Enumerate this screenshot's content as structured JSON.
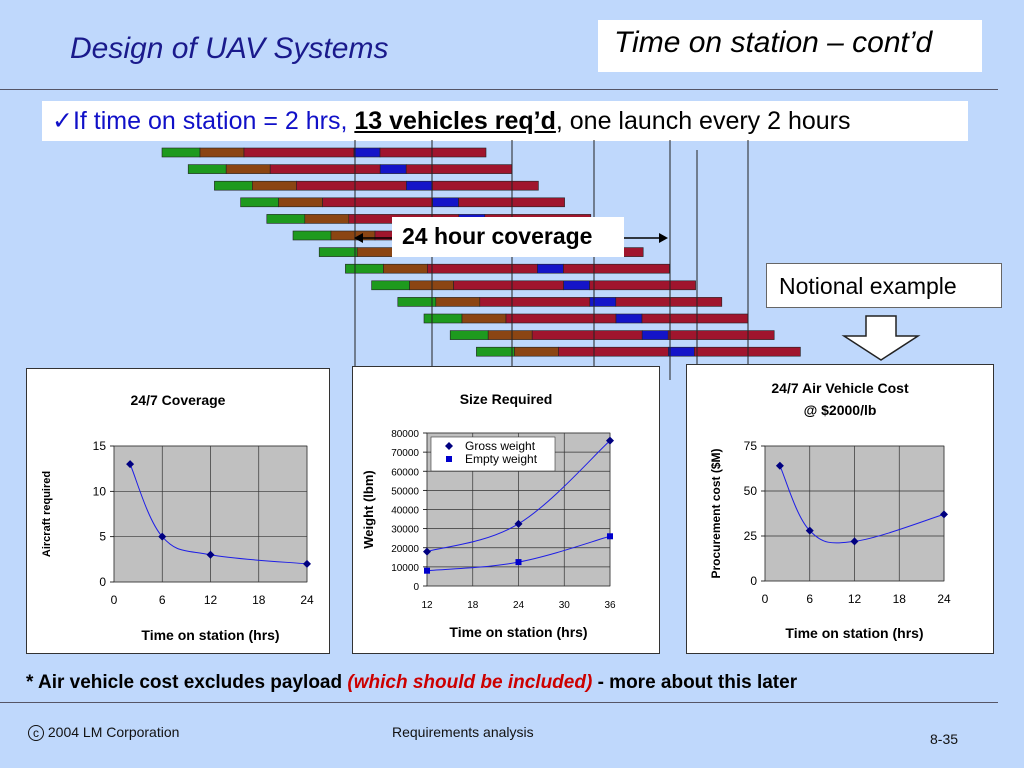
{
  "header": {
    "title": "Design of UAV Systems",
    "section_title": "Time on station – cont’d"
  },
  "bullet": {
    "check_icon": "check-icon",
    "prefix": "If time on station = 2 hrs,",
    "highlight": "13 vehicles req’d",
    "suffix": ", one launch every 2 hours"
  },
  "timeline": {
    "coverage_label": "24 hour coverage",
    "colors": {
      "climb": "#1E9A1E",
      "cruise_out": "#8B4513",
      "station": "#A0152D",
      "return": "#1414C8"
    },
    "vehicle_count": 13
  },
  "notional": {
    "label": "Notional example",
    "arrow_icon": "down-arrow-icon"
  },
  "charts": [
    {
      "chart_data": {
        "type": "scatter",
        "title": "24/7 Coverage",
        "xlabel": "Time on station (hrs)",
        "ylabel": "Aircraft required",
        "x": [
          2,
          6,
          12,
          24
        ],
        "series": [
          {
            "values": [
              13,
              5,
              3,
              2
            ]
          }
        ],
        "xlim": [
          0,
          24
        ],
        "ylim": [
          0,
          15
        ],
        "xticks": [
          "0",
          "6",
          "12",
          "18",
          "24"
        ],
        "yticks": [
          "0",
          "5",
          "10",
          "15"
        ],
        "trendline": "smooth",
        "grid": true
      }
    },
    {
      "chart_data": {
        "type": "scatter",
        "title": "Size Required",
        "xlabel": "Time on station (hrs)",
        "ylabel": "Weight (lbm)",
        "x": [
          12,
          24,
          36
        ],
        "series": [
          {
            "name": "Gross weight",
            "values": [
              18000,
              32500,
              76000
            ]
          },
          {
            "name": "Empty weight",
            "values": [
              8000,
              12500,
              26000
            ]
          }
        ],
        "xlim": [
          12,
          36
        ],
        "ylim": [
          0,
          80000
        ],
        "xticks": [
          "12",
          "18",
          "24",
          "30",
          "36"
        ],
        "yticks": [
          "0",
          "10000",
          "20000",
          "30000",
          "40000",
          "50000",
          "60000",
          "70000",
          "80000"
        ],
        "legend": "top-left",
        "trendline": "smooth",
        "grid": true
      }
    },
    {
      "chart_data": {
        "type": "scatter",
        "title": "24/7 Air Vehicle Cost",
        "subtitle": "@ $2000/lb",
        "xlabel": "Time on station (hrs)",
        "ylabel": "Procurement cost ($M)",
        "x": [
          2,
          6,
          12,
          24
        ],
        "series": [
          {
            "values": [
              64,
              28,
              22,
              37
            ]
          }
        ],
        "xlim": [
          0,
          24
        ],
        "ylim": [
          0,
          75
        ],
        "xticks": [
          "0",
          "6",
          "12",
          "18",
          "24"
        ],
        "yticks": [
          "0",
          "25",
          "50",
          "75"
        ],
        "trendline": "smooth",
        "grid": true
      }
    }
  ],
  "footnote": {
    "lead": "* Air vehicle cost excludes payload",
    "highlight": "(which should be included)",
    "tail": "- more about this later"
  },
  "footer": {
    "copyright_symbol": "c",
    "copyright": "2004 LM Corporation",
    "center": "Requirements analysis",
    "page": "8-35"
  }
}
